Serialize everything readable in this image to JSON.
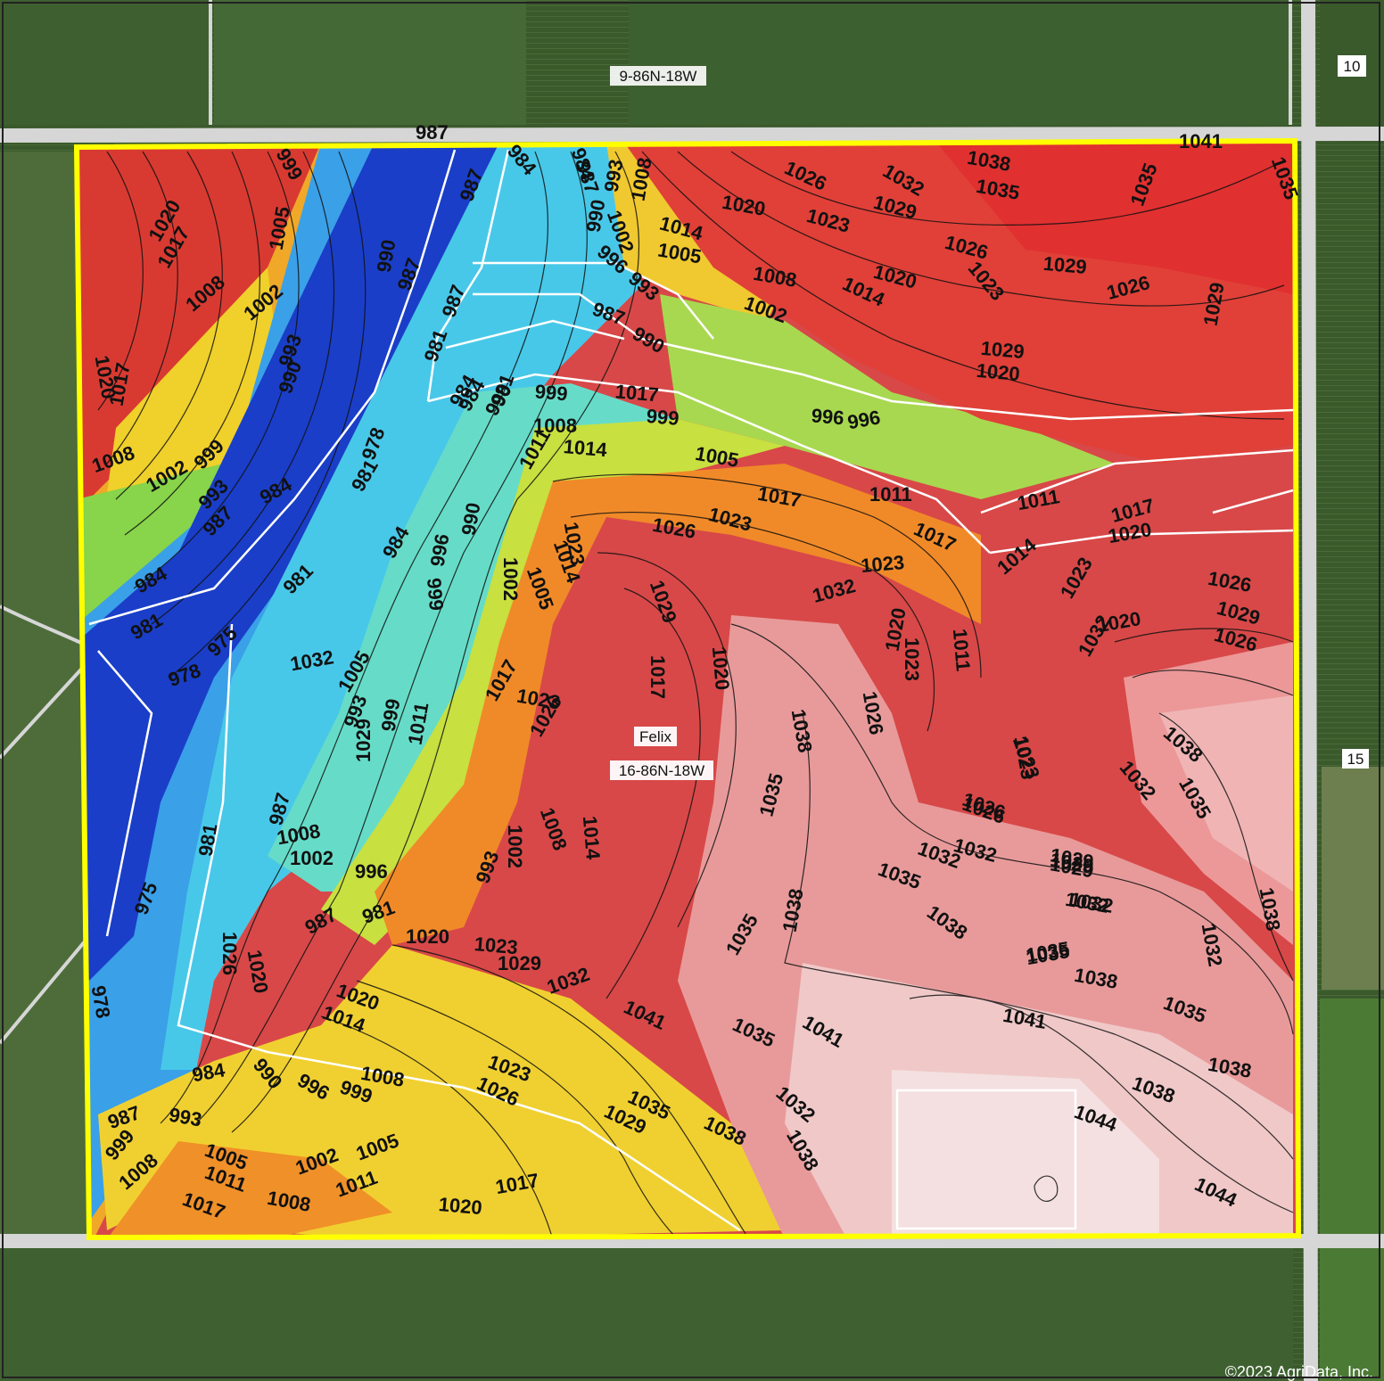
{
  "sections": {
    "north": "9-86N-18W",
    "field": "16-86N-18W",
    "ne_corner": "10",
    "east": "15"
  },
  "field_name": "Felix",
  "copyright": "©2023 AgriData, Inc.",
  "colors": {
    "boundary": "#ffff00",
    "contour": "#111111",
    "low": "#1530c8",
    "high": "#f5e6e6",
    "road": "#d8d8d8"
  },
  "elevation_labels": {
    "north_edge": "987",
    "ne_edge": "1041",
    "west": [
      "1020",
      "1017",
      "1005",
      "1008",
      "1002",
      "993",
      "990",
      "1020",
      "1017",
      "1008",
      "1002",
      "999",
      "993",
      "987",
      "984",
      "984",
      "981",
      "978",
      "975",
      "981",
      "978"
    ],
    "valley": [
      "999",
      "984",
      "987",
      "990",
      "987",
      "981",
      "987",
      "984",
      "981",
      "978",
      "981",
      "975",
      "981",
      "987",
      "984"
    ],
    "north_slope": [
      "984",
      "987",
      "993",
      "990",
      "1002",
      "1008",
      "1014",
      "1005",
      "1020",
      "1026",
      "1023",
      "1008",
      "1002",
      "996",
      "993",
      "987",
      "990",
      "1032",
      "1029",
      "1038",
      "1035",
      "1035",
      "1035",
      "1026",
      "1029",
      "1020",
      "1014",
      "1023",
      "1029",
      "1026",
      "1029",
      "1020",
      "1017",
      "996",
      "999",
      "1005",
      "1011",
      "1011",
      "1017",
      "1020",
      "1017",
      "1014"
    ],
    "center": [
      "984",
      "990",
      "999",
      "996",
      "1008",
      "1014",
      "1011",
      "1017",
      "1023",
      "1026",
      "1023",
      "1029",
      "1023",
      "1032",
      "990",
      "996",
      "999",
      "1002",
      "1005",
      "1014",
      "1020",
      "1023",
      "1011",
      "1017",
      "1020",
      "1026",
      "1005",
      "993",
      "999",
      "1011",
      "1017",
      "1023",
      "1026",
      "1029",
      "1032",
      "1008",
      "1002",
      "996",
      "987",
      "981",
      "993",
      "1002",
      "1008",
      "1014",
      "1020",
      "1023",
      "1029",
      "1032",
      "1026",
      "1020",
      "1032",
      "1038",
      "1035",
      "1035",
      "1038"
    ],
    "east": [
      "1023",
      "1026",
      "1029",
      "1026",
      "1020",
      "1032",
      "1023",
      "1029",
      "1032",
      "1026",
      "1029",
      "1032",
      "1035",
      "1038",
      "1035",
      "1023",
      "1026",
      "1029",
      "1032",
      "1038",
      "1035",
      "1032",
      "1038",
      "1035",
      "1038",
      "1041",
      "1041",
      "1044",
      "1044",
      "1032",
      "1035",
      "1038",
      "1038"
    ],
    "south": [
      "984",
      "990",
      "996",
      "999",
      "1008",
      "987",
      "993",
      "999",
      "1008",
      "1005",
      "1011",
      "1017",
      "1002",
      "1005",
      "1011",
      "1008",
      "1017",
      "1020",
      "1020",
      "1014",
      "1023",
      "1026",
      "1029",
      "1035",
      "1038",
      "1041",
      "1035",
      "1032",
      "1038"
    ]
  }
}
